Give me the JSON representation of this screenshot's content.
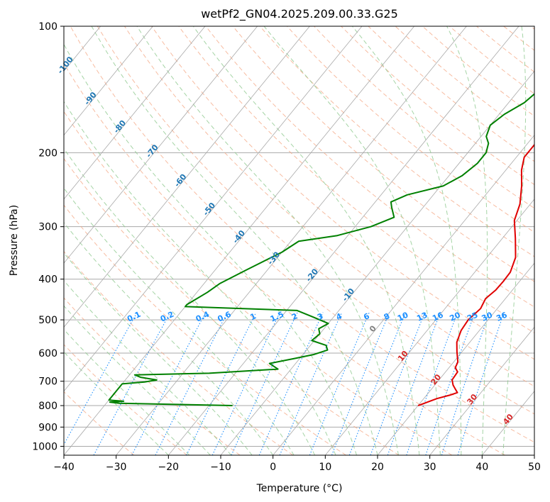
{
  "chart_data": {
    "type": "line",
    "title": "wetPf2_GN04.2025.209.00.33.G25",
    "xlabel": "Temperature (°C)",
    "ylabel": "Pressure (hPa)",
    "xlim": [
      -40,
      50
    ],
    "ylim": [
      1050,
      100
    ],
    "yscale": "log",
    "grid": true,
    "x_ticks": [
      "−40",
      "−30",
      "−20",
      "−10",
      "0",
      "10",
      "20",
      "30",
      "40",
      "50"
    ],
    "y_ticks": [
      "100",
      "200",
      "300",
      "400",
      "500",
      "600",
      "700",
      "800",
      "900",
      "1000"
    ],
    "colors": {
      "temperature": "#e00000",
      "dewpoint": "#008000",
      "isotherm": "#a9a9a9",
      "dry_adiabat": "#f4a582",
      "moist_adiabat": "#8fc98f",
      "mixing_ratio": "#1e90ff",
      "annotation_blue": "#1f77b4",
      "annotation_red": "#d62728"
    },
    "series": [
      {
        "key": "temperature",
        "points": [
          {
            "t": 20,
            "p": 800
          },
          {
            "t": 22.5,
            "p": 770
          },
          {
            "t": 24.5,
            "p": 755
          },
          {
            "t": 25.5,
            "p": 745
          },
          {
            "t": 24.5,
            "p": 730
          },
          {
            "t": 23.5,
            "p": 715
          },
          {
            "t": 22.5,
            "p": 695
          },
          {
            "t": 22.3,
            "p": 665
          },
          {
            "t": 21.2,
            "p": 650
          },
          {
            "t": 20.8,
            "p": 630
          },
          {
            "t": 19,
            "p": 595
          },
          {
            "t": 17.5,
            "p": 565
          },
          {
            "t": 16.5,
            "p": 530
          },
          {
            "t": 16.2,
            "p": 500
          },
          {
            "t": 16.8,
            "p": 470
          },
          {
            "t": 16.2,
            "p": 445
          },
          {
            "t": 16.8,
            "p": 425
          },
          {
            "t": 16.9,
            "p": 405
          },
          {
            "t": 16.8,
            "p": 385
          },
          {
            "t": 15.5,
            "p": 355
          },
          {
            "t": 12.5,
            "p": 320
          },
          {
            "t": 9.5,
            "p": 290
          },
          {
            "t": 8,
            "p": 265
          },
          {
            "t": 5.5,
            "p": 240
          },
          {
            "t": 3,
            "p": 220
          },
          {
            "t": 1.5,
            "p": 205
          },
          {
            "t": 1.5,
            "p": 190
          },
          {
            "t": 2.5,
            "p": 165
          },
          {
            "t": 2.5,
            "p": 145
          },
          {
            "t": 4.5,
            "p": 125
          },
          {
            "t": 5.5,
            "p": 115
          },
          {
            "t": 5.5,
            "p": 108
          },
          {
            "t": 7,
            "p": 102
          },
          {
            "t": 7.5,
            "p": 100
          }
        ]
      },
      {
        "key": "dewpoint",
        "points": [
          {
            "t": -15.5,
            "p": 800
          },
          {
            "t": -37.5,
            "p": 790
          },
          {
            "t": -39.5,
            "p": 785
          },
          {
            "t": -37,
            "p": 781
          },
          {
            "t": -40,
            "p": 776
          },
          {
            "t": -40,
            "p": 710
          },
          {
            "t": -36,
            "p": 703
          },
          {
            "t": -34,
            "p": 695
          },
          {
            "t": -37.5,
            "p": 685
          },
          {
            "t": -39,
            "p": 676
          },
          {
            "t": -25,
            "p": 670
          },
          {
            "t": -12.5,
            "p": 655
          },
          {
            "t": -15,
            "p": 635
          },
          {
            "t": -11,
            "p": 618
          },
          {
            "t": -8,
            "p": 605
          },
          {
            "t": -6,
            "p": 590
          },
          {
            "t": -7,
            "p": 575
          },
          {
            "t": -10.5,
            "p": 560
          },
          {
            "t": -10,
            "p": 540
          },
          {
            "t": -11,
            "p": 525
          },
          {
            "t": -10,
            "p": 510
          },
          {
            "t": -14,
            "p": 492
          },
          {
            "t": -18,
            "p": 475
          },
          {
            "t": -40,
            "p": 465
          },
          {
            "t": -40,
            "p": 460
          },
          {
            "t": -38,
            "p": 430
          },
          {
            "t": -37,
            "p": 410
          },
          {
            "t": -34,
            "p": 380
          },
          {
            "t": -30,
            "p": 345
          },
          {
            "t": -28.5,
            "p": 325
          },
          {
            "t": -22,
            "p": 315
          },
          {
            "t": -17,
            "p": 300
          },
          {
            "t": -14,
            "p": 285
          },
          {
            "t": -16,
            "p": 270
          },
          {
            "t": -17,
            "p": 262
          },
          {
            "t": -15,
            "p": 252
          },
          {
            "t": -9.5,
            "p": 240
          },
          {
            "t": -7.5,
            "p": 227
          },
          {
            "t": -6.5,
            "p": 212
          },
          {
            "t": -6.5,
            "p": 200
          },
          {
            "t": -7.5,
            "p": 190
          },
          {
            "t": -9,
            "p": 183
          },
          {
            "t": -10,
            "p": 172
          },
          {
            "t": -9,
            "p": 162
          },
          {
            "t": -7,
            "p": 152
          },
          {
            "t": -6,
            "p": 140
          },
          {
            "t": -5.5,
            "p": 128
          },
          {
            "t": -5,
            "p": 123
          },
          {
            "t": -2,
            "p": 118
          },
          {
            "t": 0,
            "p": 113
          },
          {
            "t": 0.5,
            "p": 107
          },
          {
            "t": 0.5,
            "p": 100
          }
        ]
      }
    ],
    "isotherm_labels": [
      "-100",
      "-90",
      "-80",
      "-70",
      "-60",
      "-50",
      "-40",
      "-30",
      "-20",
      "-10",
      "0",
      "10",
      "20",
      "30",
      "40"
    ],
    "mixing_ratio_labels": [
      "0.1",
      "0.2",
      "0.4",
      "0.6",
      "1",
      "1.5",
      "2",
      "3",
      "4",
      "6",
      "8",
      "10",
      "13",
      "16",
      "20",
      "25",
      "30",
      "36"
    ],
    "mixing_ratio_values": [
      0.1,
      0.2,
      0.4,
      0.6,
      1,
      1.5,
      2,
      3,
      4,
      6,
      8,
      10,
      13,
      16,
      20,
      25,
      30,
      36
    ]
  }
}
